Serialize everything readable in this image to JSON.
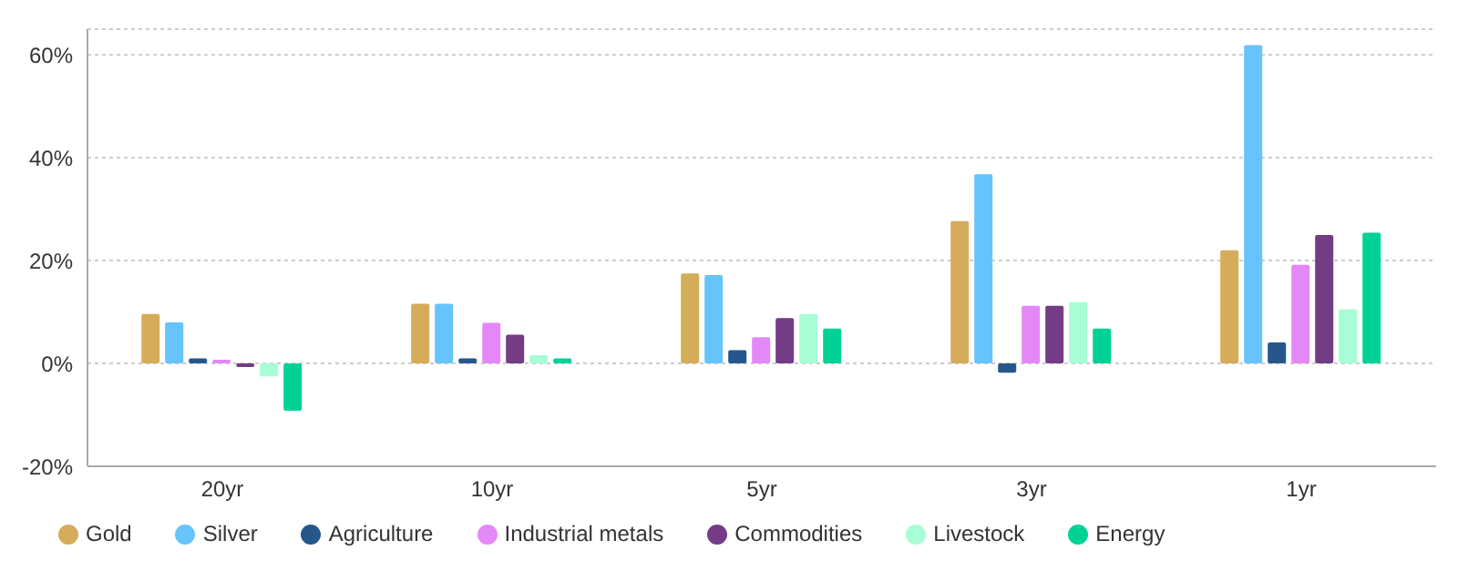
{
  "chart_data": {
    "type": "bar",
    "categories": [
      "20yr",
      "10yr",
      "5yr",
      "3yr",
      "1yr"
    ],
    "series": [
      {
        "name": "Gold",
        "color": "#d4ac5a",
        "values": [
          9.6,
          11.6,
          17.5,
          27.7,
          22.0
        ]
      },
      {
        "name": "Silver",
        "color": "#66c4fb",
        "values": [
          8.0,
          11.6,
          17.2,
          36.8,
          61.9
        ]
      },
      {
        "name": "Agriculture",
        "color": "#26578a",
        "values": [
          1.0,
          1.0,
          2.6,
          -1.8,
          4.1
        ]
      },
      {
        "name": "Industrial metals",
        "color": "#e488f7",
        "values": [
          0.5,
          7.9,
          5.1,
          11.2,
          19.2
        ]
      },
      {
        "name": "Commodities",
        "color": "#733c84",
        "values": [
          -0.4,
          5.6,
          8.8,
          11.2,
          25.0
        ]
      },
      {
        "name": "Livestock",
        "color": "#a6fdd6",
        "values": [
          -2.5,
          1.6,
          9.6,
          11.9,
          10.5
        ]
      },
      {
        "name": "Energy",
        "color": "#00d296",
        "values": [
          -9.2,
          1.0,
          6.8,
          6.8,
          25.4
        ]
      }
    ],
    "ylim": [
      -20,
      65
    ],
    "yticks": [
      {
        "value": -20,
        "label": "-20%"
      },
      {
        "value": 0,
        "label": "0%"
      },
      {
        "value": 20,
        "label": "20%"
      },
      {
        "value": 40,
        "label": "40%"
      },
      {
        "value": 60,
        "label": "60%"
      }
    ],
    "grid": "y",
    "legend": "bottom left"
  }
}
